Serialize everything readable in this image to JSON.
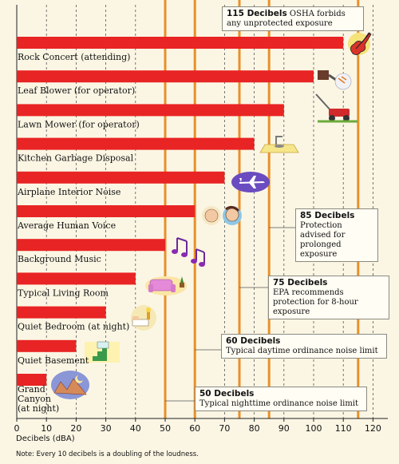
{
  "chart_data": {
    "type": "bar",
    "orientation": "horizontal",
    "categories": [
      "Rock Concert (attending)",
      "Leaf Blower (for operator)",
      "Lawn Mower (for operator)",
      "Kitchen Garbage Disposal",
      "Airplane Interior Noise",
      "Average Human Voice",
      "Background Music",
      "Typical Living Room",
      "Quiet Bedroom (at night)",
      "Quiet Basement",
      "Grand Canyon (at night)"
    ],
    "values": [
      110,
      100,
      90,
      80,
      70,
      60,
      50,
      40,
      30,
      20,
      10
    ],
    "xlabel": "Decibels (dBA)",
    "xlim": [
      0,
      125
    ],
    "xticks": [
      0,
      10,
      20,
      30,
      40,
      50,
      60,
      70,
      80,
      90,
      100,
      110,
      120
    ],
    "grid": "vertical dashed",
    "thresholds": [
      {
        "value": 115,
        "title": "115 Decibels",
        "text": "OSHA forbids any unprotected exposure"
      },
      {
        "value": 85,
        "title": "85 Decibels",
        "text": "Protection advised for prolonged exposure"
      },
      {
        "value": 75,
        "title": "75 Decibels",
        "text": "EPA recommends protection for 8-hour exposure"
      },
      {
        "value": 60,
        "title": "60 Decibels",
        "text": "Typical daytime ordinance noise limit"
      },
      {
        "value": 50,
        "title": "50 Decibels",
        "text": "Typical nighttime ordinance noise limit"
      }
    ],
    "note": "Note: Every 10 decibels is a doubling of the loudness."
  },
  "colors": {
    "bar": "#e82424",
    "threshold_line": "#e8902a",
    "grid": "#555555",
    "background": "#fbf6e4"
  },
  "icons": [
    "guitar-icon",
    "leaf-blower-icon",
    "lawn-mower-icon",
    "garbage-disposal-icon",
    "airplane-icon",
    "faces-icon",
    "music-notes-icon",
    "sofa-icon",
    "bedroom-icon",
    "stairs-icon",
    "canyon-icon"
  ]
}
